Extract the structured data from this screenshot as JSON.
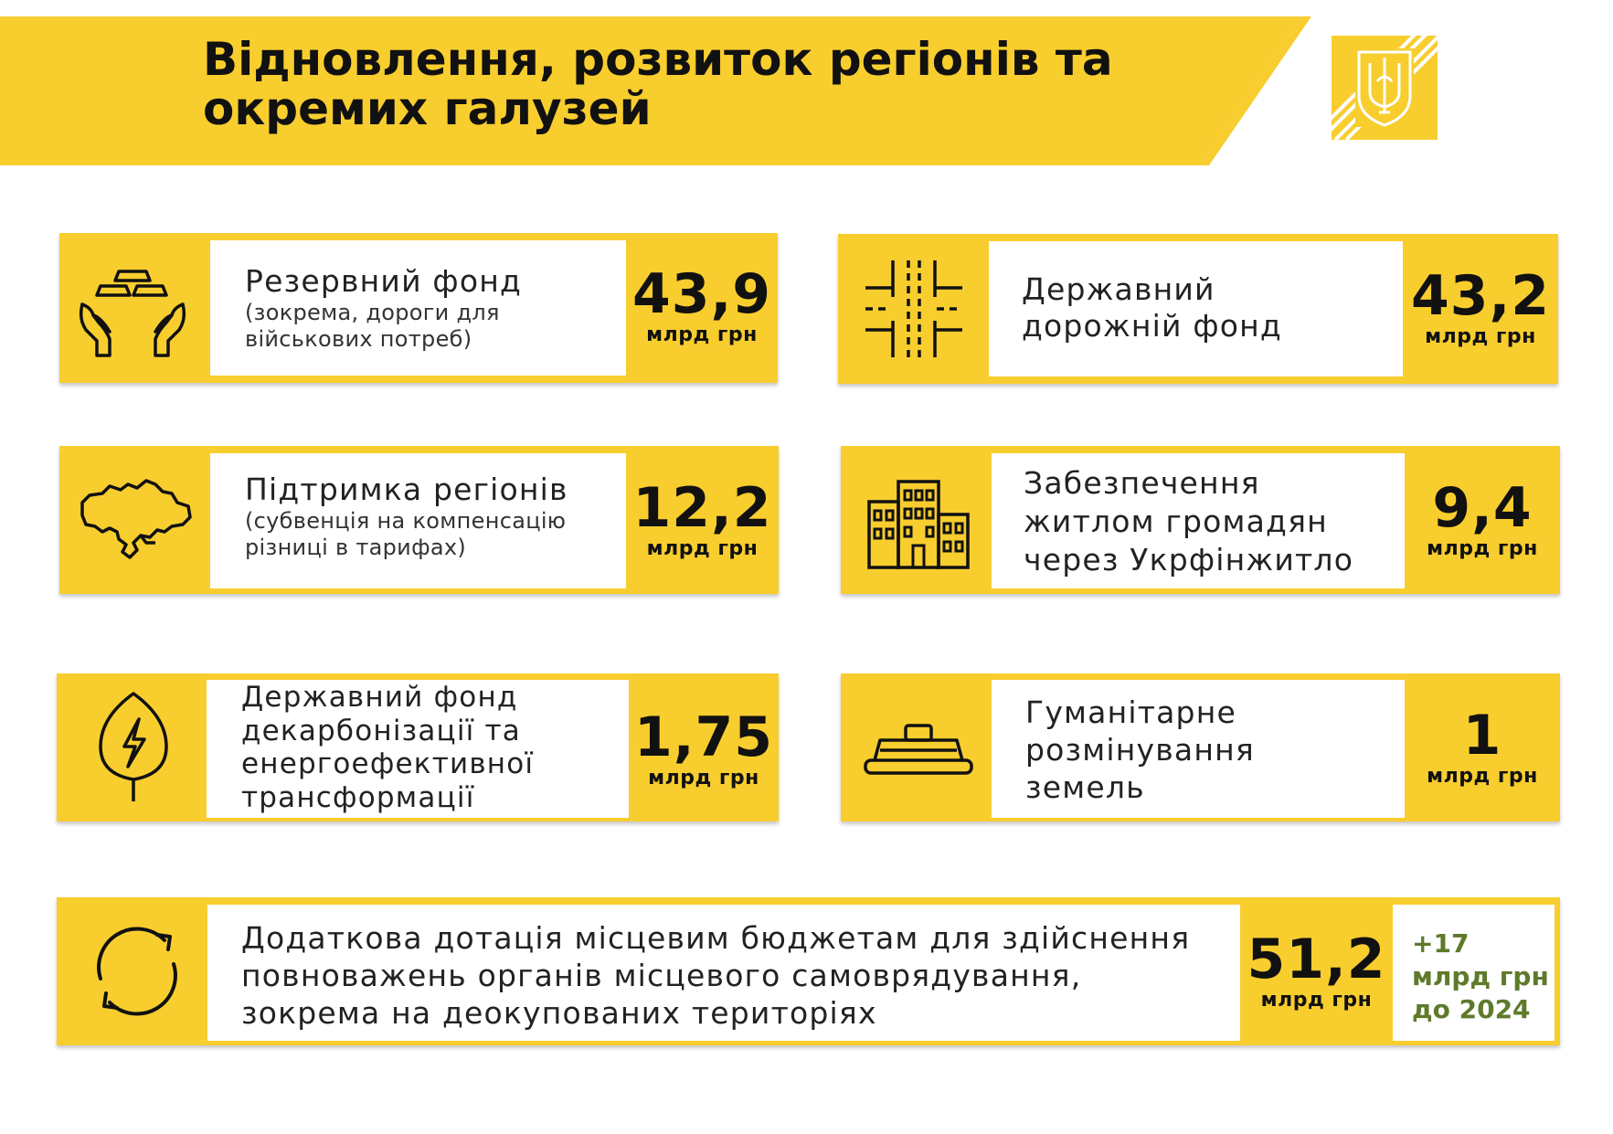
{
  "header": {
    "title_line1": "Відновлення, розвиток регіонів та",
    "title_line2": "окремих галузей"
  },
  "colors": {
    "accent": "#f8cd2e",
    "text": "#111111",
    "extra_green": "#5e7a2a"
  },
  "cards": [
    {
      "icon": "hands-gold-bars-icon",
      "title": "Резервний фонд",
      "subtitle_line1": "(зокрема, дороги для",
      "subtitle_line2": "військових потреб)",
      "value": "43,9",
      "unit": "млрд грн"
    },
    {
      "icon": "road-intersection-icon",
      "title_line1": "Державний",
      "title_line2": "дорожній фонд",
      "value": "43,2",
      "unit": "млрд грн"
    },
    {
      "icon": "ukraine-map-icon",
      "title": "Підтримка регіонів",
      "subtitle_line1": "(субвенція на компенсацію",
      "subtitle_line2": "різниці в тарифах)",
      "value": "12,2",
      "unit": "млрд грн"
    },
    {
      "icon": "buildings-icon",
      "title_line1": "Забезпечення",
      "title_line2": "житлом громадян",
      "title_line3": "через Укрфінжитло",
      "value": "9,4",
      "unit": "млрд грн"
    },
    {
      "icon": "leaf-lightning-icon",
      "title_line1": "Державний фонд",
      "title_line2": "декарбонізації та",
      "title_line3": "енергоефективної",
      "title_line4": "трансформації",
      "value": "1,75",
      "unit": "млрд грн"
    },
    {
      "icon": "landmine-icon",
      "title_line1": "Гуманітарне",
      "title_line2": "розмінування",
      "title_line3": "земель",
      "value": "1",
      "unit": "млрд грн"
    },
    {
      "icon": "recycle-arrows-icon",
      "title_line1": "Додаткова дотація місцевим бюджетам для здійснення",
      "title_line2": "повноважень органів місцевого самоврядування,",
      "title_line3": "зокрема на деокупованих територіях",
      "value": "51,2",
      "unit": "млрд грн",
      "extra_line1": "+17",
      "extra_line2": "млрд грн",
      "extra_line3": "до 2024"
    }
  ]
}
